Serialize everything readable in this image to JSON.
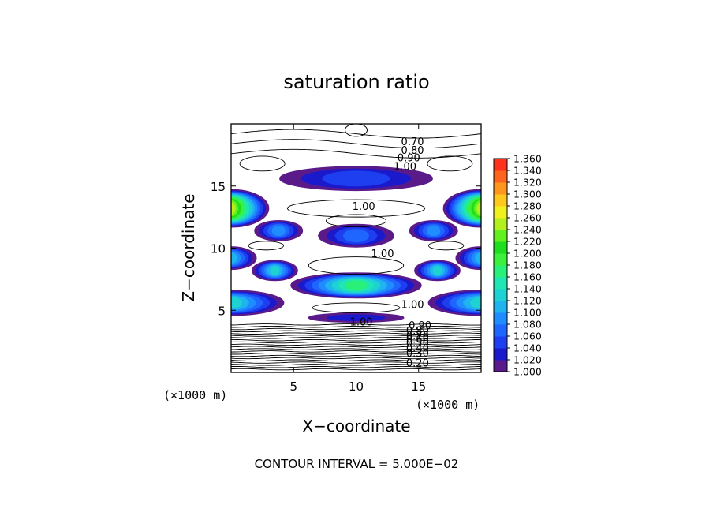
{
  "chart_data": {
    "type": "heatmap",
    "title": "saturation ratio",
    "xlabel": "X−coordinate",
    "ylabel": "Z−coordinate",
    "x_unit_left": "(×1000 m)",
    "x_unit_right": "(×1000 m)",
    "xlim": [
      0,
      20
    ],
    "ylim": [
      0,
      20
    ],
    "xticks": [
      5,
      10,
      15
    ],
    "yticks": [
      5,
      10,
      15
    ],
    "footer": "CONTOUR INTERVAL = 5.000E−02",
    "colorbar": {
      "levels": [
        "1.000",
        "1.020",
        "1.040",
        "1.060",
        "1.080",
        "1.100",
        "1.120",
        "1.140",
        "1.160",
        "1.180",
        "1.200",
        "1.220",
        "1.240",
        "1.260",
        "1.280",
        "1.300",
        "1.320",
        "1.340",
        "1.360"
      ],
      "colors": [
        "#5a1a8a",
        "#1a1acc",
        "#1e3ff0",
        "#1f66ff",
        "#1f8cff",
        "#1fb4f0",
        "#1ed2d2",
        "#1ee6b4",
        "#28f078",
        "#3cf03c",
        "#1ede1e",
        "#64f01e",
        "#b4f01e",
        "#f0f01e",
        "#ffc81e",
        "#ff961e",
        "#ff641e",
        "#ff321e",
        "#ff8282"
      ]
    },
    "contour_labels": [
      {
        "text": "0.70",
        "x": 13.6,
        "z": 18.6
      },
      {
        "text": "0.80",
        "x": 13.6,
        "z": 17.9
      },
      {
        "text": "0.90",
        "x": 13.3,
        "z": 17.3
      },
      {
        "text": "1.00",
        "x": 13.0,
        "z": 16.6
      },
      {
        "text": "1.00",
        "x": 9.7,
        "z": 13.4
      },
      {
        "text": "1.00",
        "x": 11.2,
        "z": 9.6
      },
      {
        "text": "1.00",
        "x": 13.6,
        "z": 5.5
      },
      {
        "text": "1.00",
        "x": 9.5,
        "z": 4.1
      },
      {
        "text": "0.90",
        "x": 14.2,
        "z": 3.8
      },
      {
        "text": "0.80",
        "x": 14.0,
        "z": 3.4
      },
      {
        "text": "0.70",
        "x": 14.0,
        "z": 3.0
      },
      {
        "text": "0.60",
        "x": 14.0,
        "z": 2.7
      },
      {
        "text": "0.50",
        "x": 14.0,
        "z": 2.4
      },
      {
        "text": "0.40",
        "x": 14.0,
        "z": 2.0
      },
      {
        "text": "0.30",
        "x": 14.0,
        "z": 1.6
      },
      {
        "text": "0.20",
        "x": 14.0,
        "z": 0.8
      }
    ],
    "supersaturated_regions": [
      {
        "cx": 10,
        "cz": 15.6,
        "rx": 6.1,
        "rz": 0.95,
        "peak": 1.06
      },
      {
        "cx": 0,
        "cz": 13.2,
        "rx": 3.0,
        "rz": 1.5,
        "peak": 1.25
      },
      {
        "cx": 20,
        "cz": 13.2,
        "rx": 3.0,
        "rz": 1.5,
        "peak": 1.25
      },
      {
        "cx": 3.8,
        "cz": 11.4,
        "rx": 1.9,
        "rz": 0.8,
        "peak": 1.1
      },
      {
        "cx": 16.2,
        "cz": 11.4,
        "rx": 1.9,
        "rz": 0.8,
        "peak": 1.1
      },
      {
        "cx": 10,
        "cz": 11.0,
        "rx": 3.0,
        "rz": 0.9,
        "peak": 1.08
      },
      {
        "cx": 0,
        "cz": 9.2,
        "rx": 2.0,
        "rz": 0.9,
        "peak": 1.12
      },
      {
        "cx": 20,
        "cz": 9.2,
        "rx": 2.0,
        "rz": 0.9,
        "peak": 1.12
      },
      {
        "cx": 3.5,
        "cz": 8.2,
        "rx": 1.8,
        "rz": 0.8,
        "peak": 1.14
      },
      {
        "cx": 16.5,
        "cz": 8.2,
        "rx": 1.8,
        "rz": 0.8,
        "peak": 1.14
      },
      {
        "cx": 10,
        "cz": 7.0,
        "rx": 5.2,
        "rz": 1.0,
        "peak": 1.18
      },
      {
        "cx": 0,
        "cz": 5.6,
        "rx": 4.2,
        "rz": 1.0,
        "peak": 1.15
      },
      {
        "cx": 20,
        "cz": 5.6,
        "rx": 4.2,
        "rz": 1.0,
        "peak": 1.15
      },
      {
        "cx": 10,
        "cz": 4.4,
        "rx": 3.8,
        "rz": 0.35,
        "peak": 1.04
      }
    ]
  }
}
